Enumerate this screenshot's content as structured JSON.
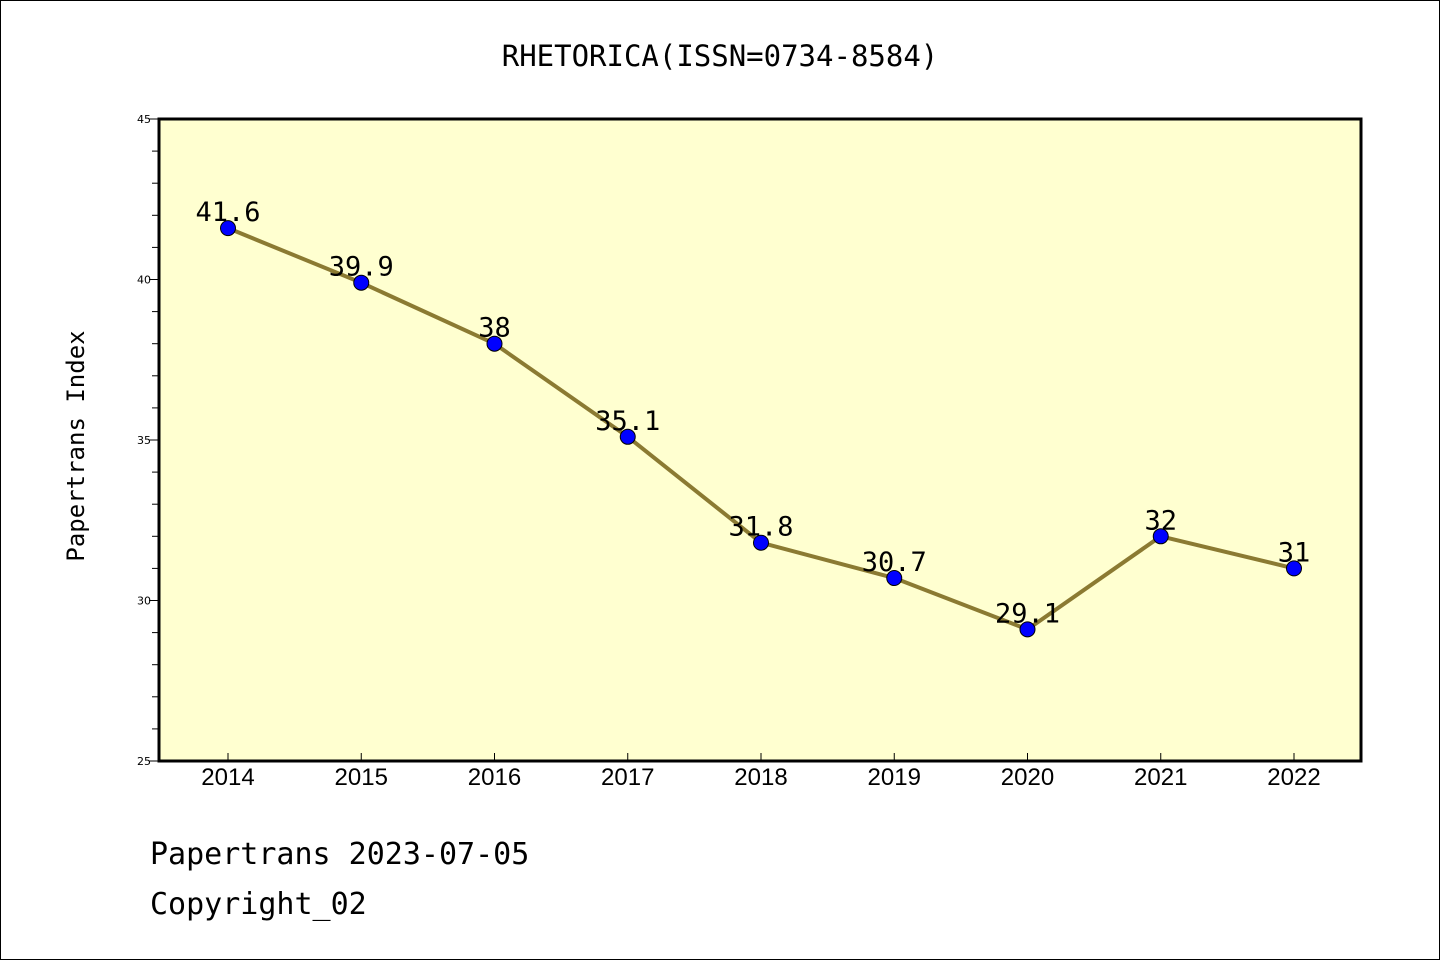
{
  "chart_data": {
    "type": "line",
    "title": "RHETORICA(ISSN=0734-8584)",
    "xlabel": "",
    "ylabel": "Papertrans Index",
    "categories": [
      "2014",
      "2015",
      "2016",
      "2017",
      "2018",
      "2019",
      "2020",
      "2021",
      "2022"
    ],
    "values": [
      41.6,
      39.9,
      38,
      35.1,
      31.8,
      30.7,
      29.1,
      32,
      31
    ],
    "value_labels": [
      "41.6",
      "39.9",
      "38",
      "35.1",
      "31.8",
      "30.7",
      "29.1",
      "32",
      "31"
    ],
    "ylim": [
      25,
      45
    ],
    "yticks": [
      25,
      30,
      35,
      40,
      45
    ],
    "grid": false,
    "colors": {
      "plot_background": "#ffffd0",
      "line": "#8b7a32",
      "marker": "#0000ff"
    }
  },
  "footer": {
    "line1": "Papertrans 2023-07-05",
    "line2": "Copyright_02"
  }
}
